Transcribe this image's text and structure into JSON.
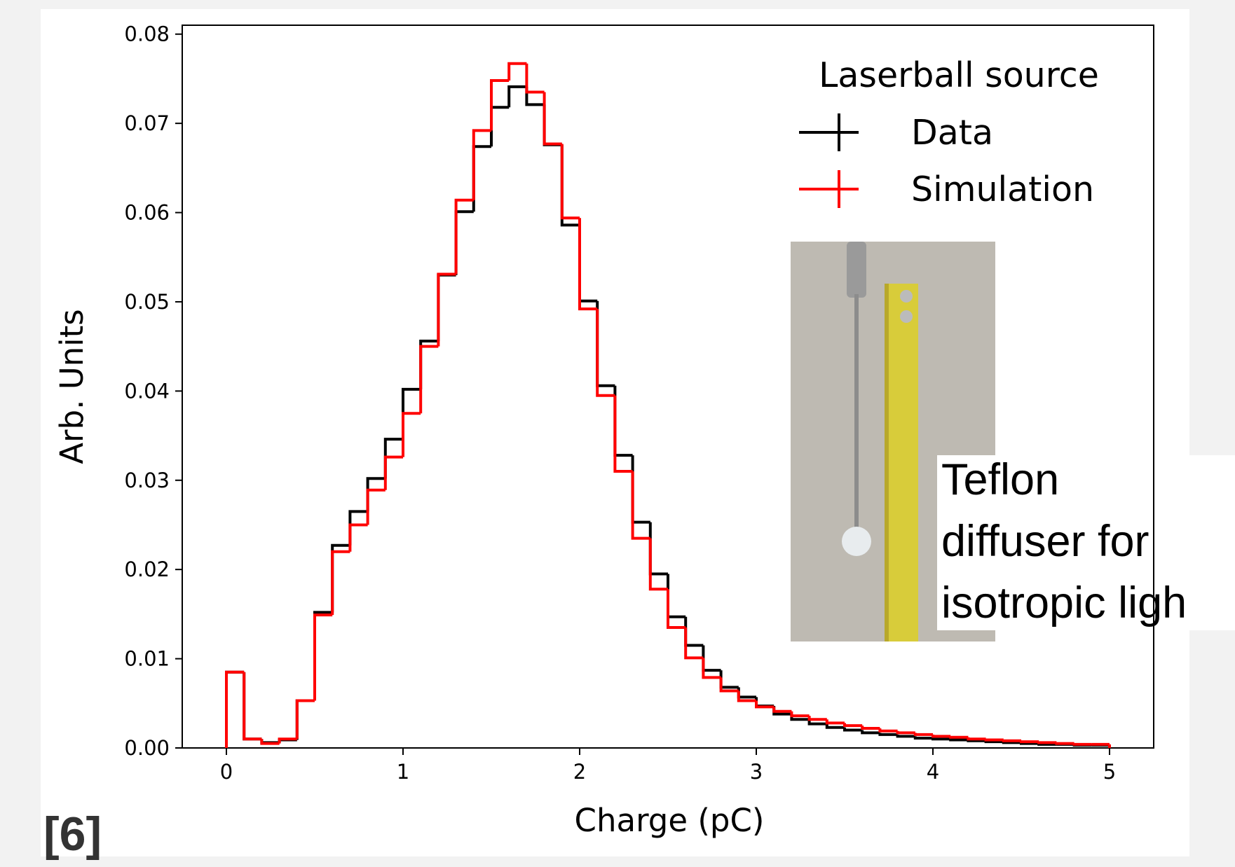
{
  "chart_data": {
    "type": "histogram",
    "xlabel": "Charge (pC)",
    "ylabel": "Arb. Units",
    "legend_title": "Laserball source",
    "legend": "upper right",
    "annotation": [
      "Teflon",
      "diffuser for",
      "isotropic ligh"
    ],
    "citation": "[6]",
    "xlim": [
      -0.25,
      5.25
    ],
    "ylim": [
      0,
      0.081
    ],
    "xticks": [
      0,
      1,
      2,
      3,
      4,
      5
    ],
    "yticks": [
      {
        "value": 0,
        "label": "0.00"
      },
      0.01,
      0.02,
      0.03,
      0.04,
      0.05,
      0.06,
      0.07,
      0.08
    ],
    "bins": [
      0,
      0.1,
      0.2,
      0.3,
      0.4,
      0.5,
      0.6,
      0.7,
      0.8,
      0.9,
      1,
      1.1,
      1.2,
      1.3,
      1.4,
      1.5,
      1.6,
      1.7,
      1.8,
      1.9,
      2,
      2.1,
      2.2,
      2.3,
      2.4,
      2.5,
      2.6,
      2.7,
      2.8,
      2.9,
      3,
      3.1,
      3.2,
      3.3,
      3.4,
      3.5,
      3.6,
      3.7,
      3.8,
      3.9,
      4,
      4.1,
      4.2,
      4.3,
      4.4,
      4.5,
      4.6,
      4.7,
      4.8,
      4.9,
      5
    ],
    "series": [
      {
        "name": "Data",
        "color": "#000000",
        "values": [
          0.0085,
          0.001,
          0.0006,
          0.0009,
          0.0053,
          0.0152,
          0.0227,
          0.0265,
          0.0302,
          0.0346,
          0.0402,
          0.0456,
          0.053,
          0.0601,
          0.0674,
          0.0718,
          0.0741,
          0.0721,
          0.0676,
          0.0586,
          0.0501,
          0.0406,
          0.0328,
          0.0253,
          0.0195,
          0.0147,
          0.0115,
          0.0087,
          0.0068,
          0.0057,
          0.0047,
          0.0038,
          0.0032,
          0.0027,
          0.0023,
          0.002,
          0.0017,
          0.0015,
          0.0013,
          0.0011,
          0.001,
          0.0009,
          0.0008,
          0.0007,
          0.0006,
          0.0005,
          0.0004,
          0.0004,
          0.0003,
          0.0003
        ]
      },
      {
        "name": "Simulation",
        "color": "#ff0000",
        "values": [
          0.0085,
          0.001,
          0.0005,
          0.001,
          0.0053,
          0.0149,
          0.022,
          0.025,
          0.0289,
          0.0326,
          0.0375,
          0.045,
          0.0531,
          0.0614,
          0.0692,
          0.0748,
          0.0767,
          0.0735,
          0.0677,
          0.0594,
          0.0492,
          0.0395,
          0.031,
          0.0235,
          0.0178,
          0.0135,
          0.0101,
          0.0079,
          0.0064,
          0.0053,
          0.0046,
          0.0041,
          0.0036,
          0.0032,
          0.0028,
          0.0025,
          0.0022,
          0.0019,
          0.0017,
          0.0015,
          0.0013,
          0.0012,
          0.001,
          0.0009,
          0.0008,
          0.0007,
          0.0006,
          0.0005,
          0.0004,
          0.0004
        ]
      }
    ]
  }
}
